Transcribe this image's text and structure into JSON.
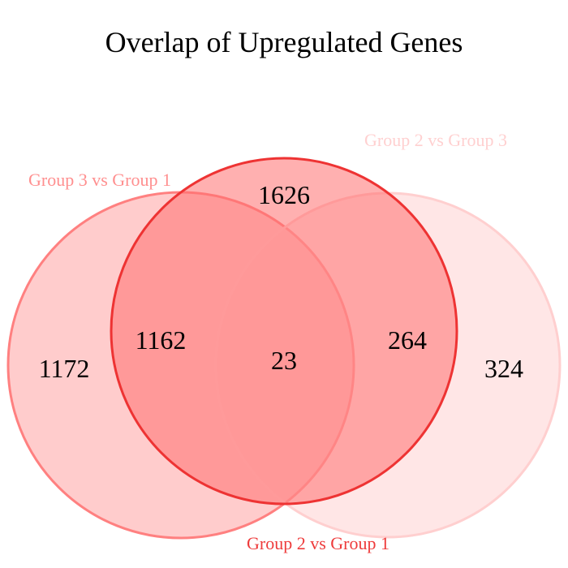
{
  "title": "Overlap of Upregulated Genes",
  "sets": [
    {
      "label": "Group 3 vs Group 1",
      "fill": "#ff8080",
      "fill_opacity": 0.4,
      "stroke": "#ff8080",
      "label_color": "#ff8f8f"
    },
    {
      "label": "Group 2 vs Group 1",
      "fill": "#ff7070",
      "fill_opacity": 0.55,
      "stroke": "#ee3333",
      "label_color": "#ee3b3b"
    },
    {
      "label": "Group 2 vs Group 3",
      "fill": "#ffc8c8",
      "fill_opacity": 0.45,
      "stroke": "#ffcfcf",
      "label_color": "#ffd0d0"
    }
  ],
  "regions": {
    "only_g3v1": "1172",
    "only_g2v1": "1626",
    "only_g2v3": "324",
    "g3v1_and_g2v1": "1162",
    "g2v1_and_g2v3": "264",
    "all_three": "23"
  }
}
